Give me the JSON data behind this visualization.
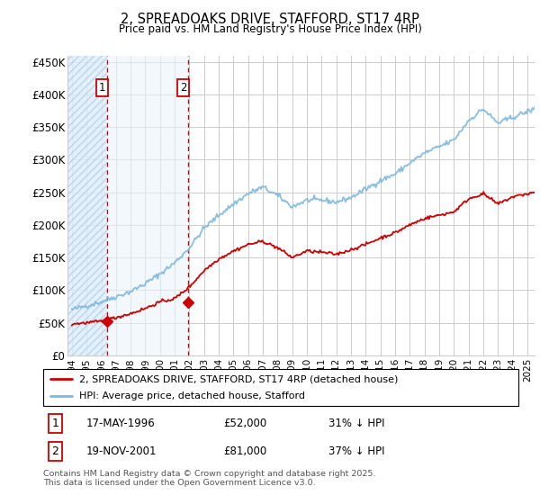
{
  "title": "2, SPREADOAKS DRIVE, STAFFORD, ST17 4RP",
  "subtitle": "Price paid vs. HM Land Registry's House Price Index (HPI)",
  "ylim": [
    0,
    460000
  ],
  "yticks": [
    0,
    50000,
    100000,
    150000,
    200000,
    250000,
    300000,
    350000,
    400000,
    450000
  ],
  "x_start_year": 1994,
  "x_end_year": 2025,
  "hpi_color": "#7ab8e0",
  "hpi_fill_color": "#daeaf5",
  "price_color": "#cc0000",
  "sale1_date": 1996.37,
  "sale1_price": 52000,
  "sale1_label": "1",
  "sale2_date": 2001.89,
  "sale2_price": 81000,
  "sale2_label": "2",
  "legend_line1": "2, SPREADOAKS DRIVE, STAFFORD, ST17 4RP (detached house)",
  "legend_line2": "HPI: Average price, detached house, Stafford",
  "table_row1_num": "1",
  "table_row1_date": "17-MAY-1996",
  "table_row1_price": "£52,000",
  "table_row1_hpi": "31% ↓ HPI",
  "table_row2_num": "2",
  "table_row2_date": "19-NOV-2001",
  "table_row2_price": "£81,000",
  "table_row2_hpi": "37% ↓ HPI",
  "footer": "Contains HM Land Registry data © Crown copyright and database right 2025.\nThis data is licensed under the Open Government Licence v3.0.",
  "grid_color": "#cccccc",
  "hpi_key_years": [
    1994,
    1995,
    1996,
    1997,
    1998,
    1999,
    2000,
    2001,
    2002,
    2003,
    2004,
    2005,
    2006,
    2007,
    2008,
    2009,
    2010,
    2011,
    2012,
    2013,
    2014,
    2015,
    2016,
    2017,
    2018,
    2019,
    2020,
    2021,
    2022,
    2023,
    2024,
    2025.5
  ],
  "hpi_key_vals": [
    70000,
    76000,
    82000,
    90000,
    98000,
    110000,
    125000,
    142000,
    165000,
    195000,
    215000,
    232000,
    248000,
    258000,
    245000,
    228000,
    238000,
    238000,
    235000,
    242000,
    255000,
    268000,
    278000,
    295000,
    310000,
    320000,
    330000,
    360000,
    378000,
    356000,
    365000,
    378000
  ],
  "price_key_years": [
    1994,
    1995,
    1996,
    1997,
    1998,
    1999,
    2000,
    2001,
    2002,
    2003,
    2004,
    2005,
    2006,
    2007,
    2008,
    2009,
    2010,
    2011,
    2012,
    2013,
    2014,
    2015,
    2016,
    2017,
    2018,
    2019,
    2020,
    2021,
    2022,
    2023,
    2024,
    2025.5
  ],
  "price_key_vals": [
    48000,
    50000,
    52000,
    58000,
    64000,
    72000,
    82000,
    87000,
    105000,
    130000,
    148000,
    160000,
    170000,
    175000,
    165000,
    150000,
    160000,
    158000,
    155000,
    162000,
    170000,
    180000,
    188000,
    200000,
    210000,
    215000,
    220000,
    240000,
    248000,
    232000,
    243000,
    250000
  ]
}
